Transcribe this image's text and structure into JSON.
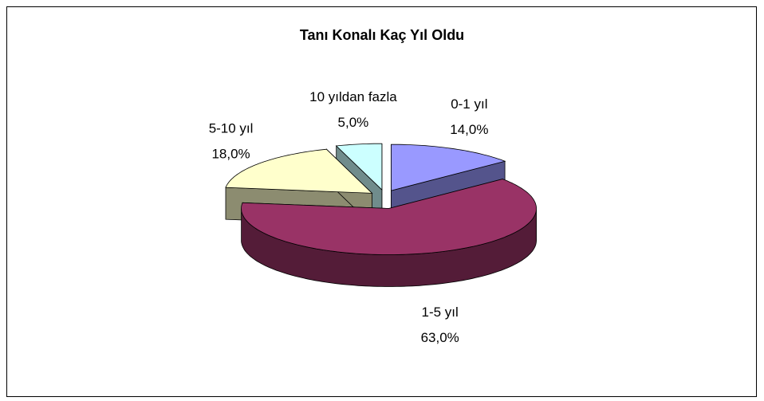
{
  "chart_data": {
    "type": "pie",
    "title": "Tanı Konalı Kaç Yıl Oldu",
    "categories": [
      "0-1 yıl",
      "1-5 yıl",
      "5-10 yıl",
      "10 yıldan fazla"
    ],
    "values": [
      14,
      63,
      18,
      5
    ],
    "value_labels": [
      "14,0%",
      "63,0%",
      "18,0%",
      "5,0%"
    ],
    "colors": [
      "#9999ff",
      "#993366",
      "#ffffcc",
      "#ccffff"
    ],
    "three_d": true,
    "exploded": true
  }
}
